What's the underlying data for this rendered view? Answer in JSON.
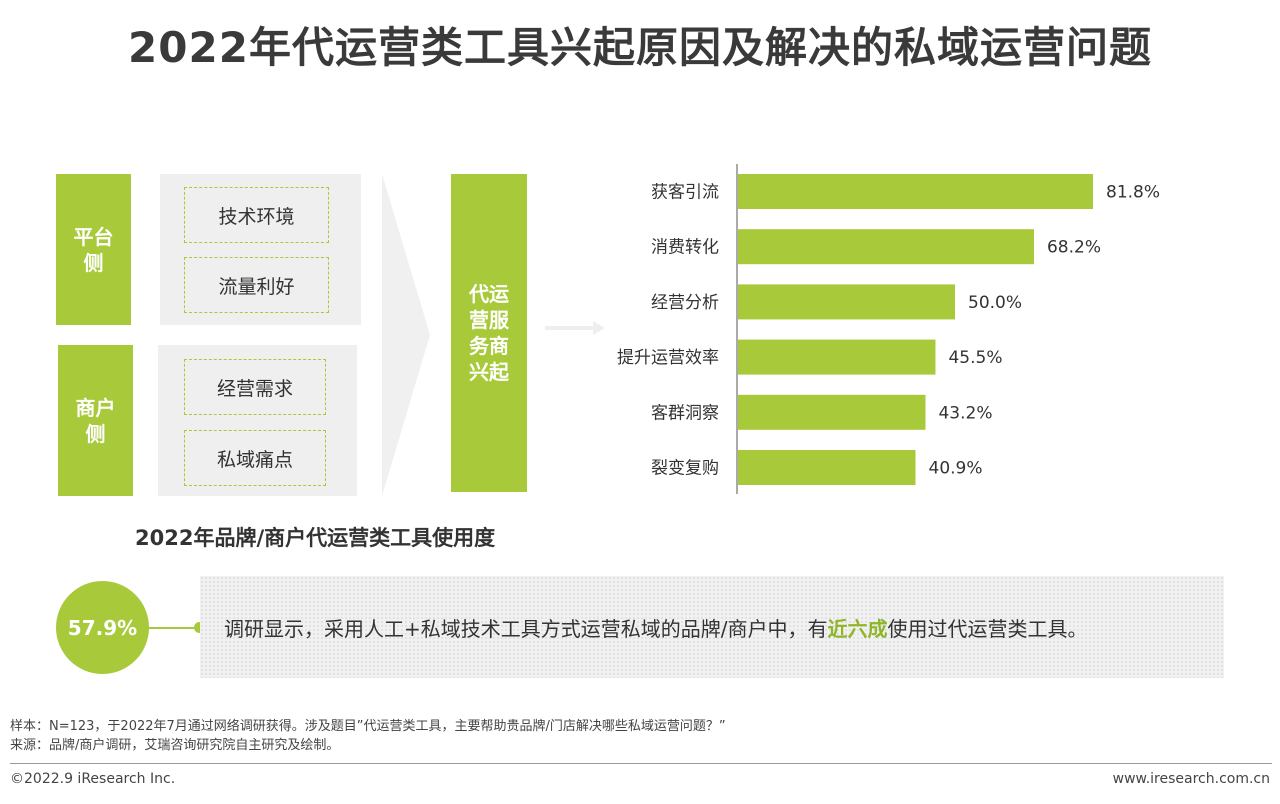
{
  "title": "2022年代运营类工具兴起原因及解决的私域运营问题",
  "left": {
    "platform": {
      "label_line1": "平台",
      "label_line2": "侧",
      "items": [
        "技术环境",
        "流量利好"
      ]
    },
    "merchant": {
      "label_line1": "商户",
      "label_line2": "侧",
      "items": [
        "经营需求",
        "私域痛点"
      ]
    },
    "result": [
      "代运",
      "营服",
      "务商",
      "兴起"
    ]
  },
  "colors": {
    "accent": "#a8c93a",
    "text": "#333333",
    "panel": "#efefef"
  },
  "chart_data": {
    "type": "bar",
    "orientation": "horizontal",
    "categories": [
      "获客引流",
      "消费转化",
      "经营分析",
      "提升运营效率",
      "客群洞察",
      "裂变复购"
    ],
    "values": [
      81.8,
      68.2,
      50.0,
      45.5,
      43.2,
      40.9
    ],
    "value_labels": [
      "81.8%",
      "68.2%",
      "50.0%",
      "45.5%",
      "43.2%",
      "40.9%"
    ],
    "unit": "%",
    "xlim": [
      0,
      100
    ],
    "grid": false,
    "color": "#a8c93a"
  },
  "usage": {
    "title": "2022年品牌/商户代运营类工具使用度",
    "percent": "57.9%",
    "text_before": "调研显示，采用人工+私域技术工具方式运营私域的品牌/商户中，有",
    "highlight": "近六成",
    "text_after": "使用过代运营类工具。"
  },
  "notes": {
    "sample": "样本：N=123，于2022年7月通过网络调研获得。涉及题目”代运营类工具，主要帮助贵品牌/门店解决哪些私域运营问题？”",
    "source": "来源：品牌/商户调研，艾瑞咨询研究院自主研究及绘制。"
  },
  "footer": {
    "copyright": "©2022.9 iResearch Inc.",
    "url": "www.iresearch.com.cn"
  }
}
